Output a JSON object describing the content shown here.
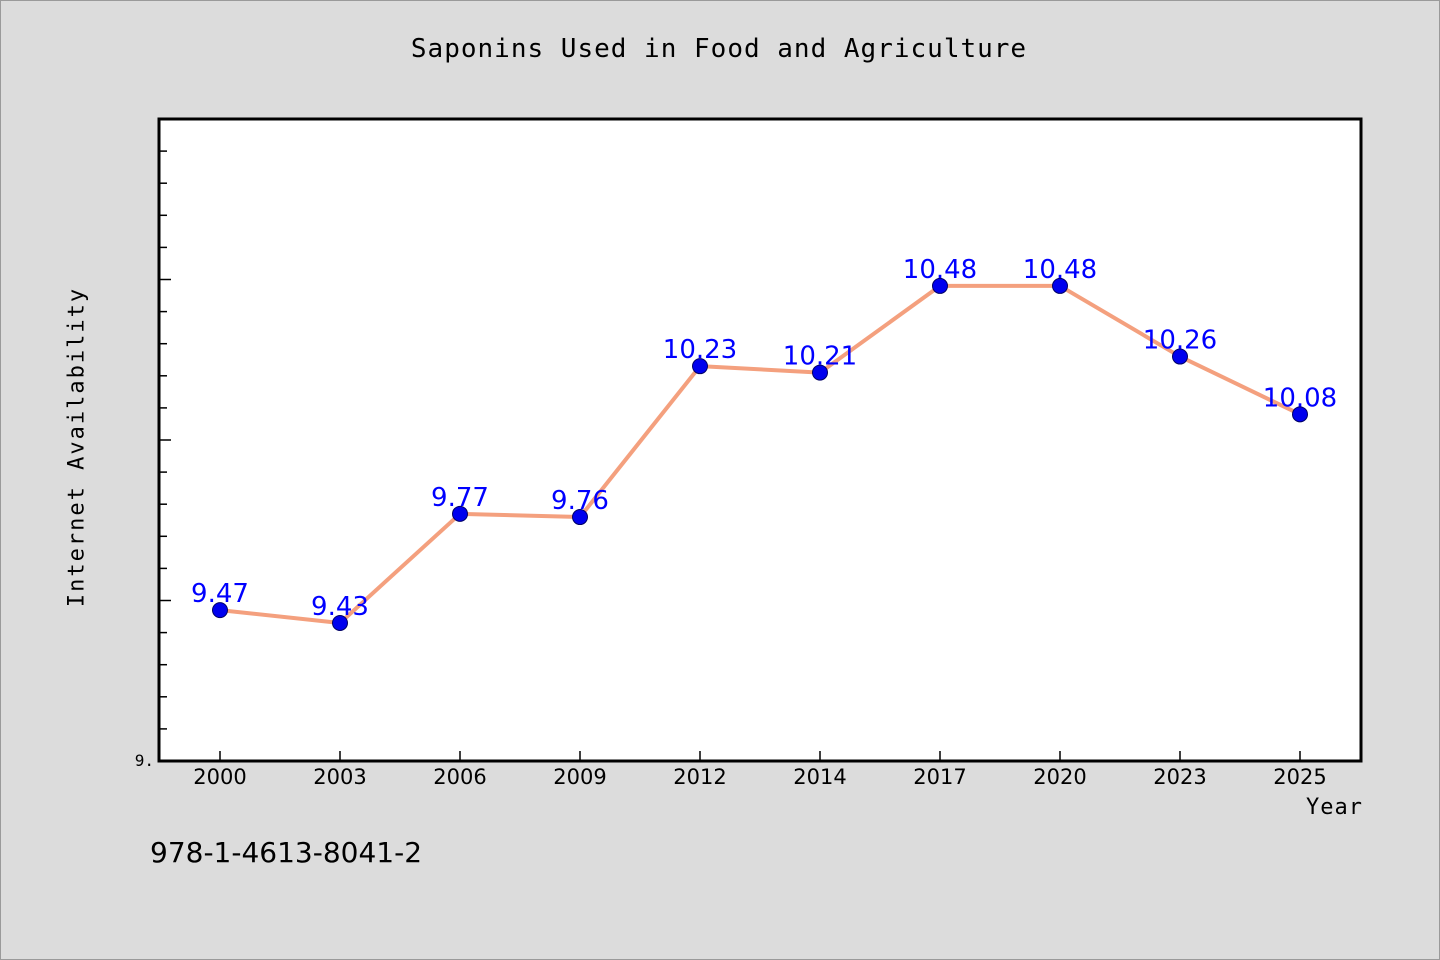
{
  "chart_data": {
    "type": "line",
    "title": "Saponins Used in Food and Agriculture",
    "xlabel": "Year",
    "ylabel": "Internet Availability",
    "categories": [
      "2000",
      "2003",
      "2006",
      "2009",
      "2012",
      "2014",
      "2017",
      "2020",
      "2023",
      "2025"
    ],
    "values": [
      9.47,
      9.43,
      9.77,
      9.76,
      10.23,
      10.21,
      10.48,
      10.48,
      10.26,
      10.08
    ],
    "data_labels": [
      "9.47",
      "9.43",
      "9.77",
      "9.76",
      "10.23",
      "10.21",
      "10.48",
      "10.48",
      "10.26",
      "10.08"
    ],
    "y_tick_labels": [
      "9."
    ],
    "ylim": [
      9.0,
      11.0
    ],
    "grid": false,
    "legend": "none",
    "colors": {
      "line": "#f4a07e",
      "marker": "#0000ee",
      "data_label": "#0000ff",
      "plot_background": "#ffffff",
      "page_background": "#dcdcdc"
    }
  },
  "footer": {
    "isbn": "978-1-4613-8041-2"
  }
}
